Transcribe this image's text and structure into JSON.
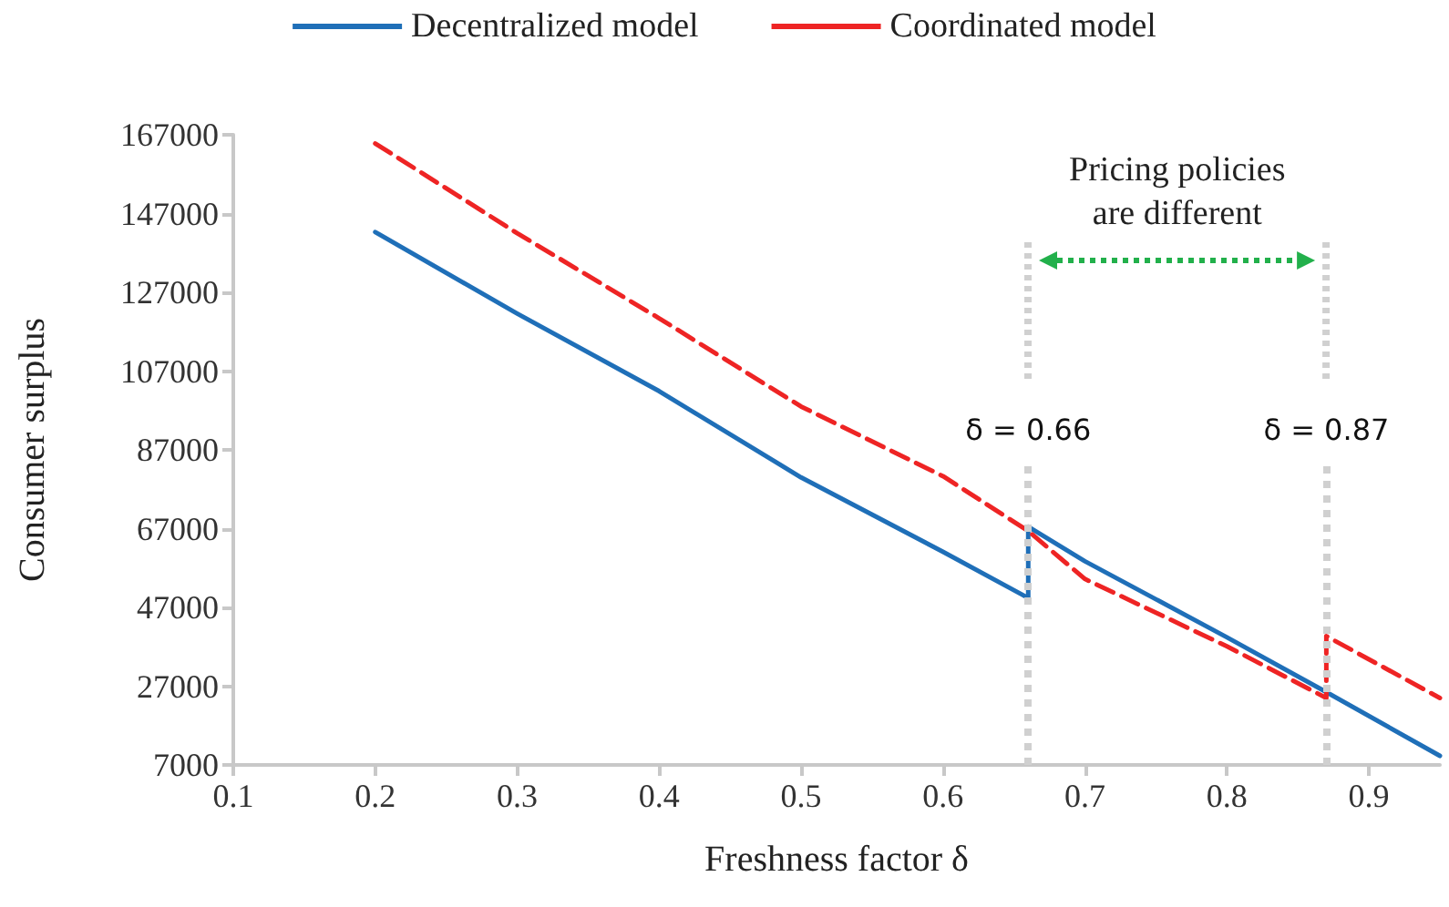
{
  "chart_data": {
    "type": "line",
    "xlabel": "Freshness factor δ",
    "ylabel": "Consumer surplus",
    "xlim": [
      0.1,
      0.95
    ],
    "xticks": [
      0.1,
      0.2,
      0.3,
      0.4,
      0.5,
      0.6,
      0.7,
      0.8,
      0.9
    ],
    "ylim": [
      7000,
      167000
    ],
    "yticks": [
      7000,
      27000,
      47000,
      67000,
      87000,
      107000,
      127000,
      147000,
      167000
    ],
    "grid": false,
    "legend": "top",
    "marker": "none",
    "series": [
      {
        "name": "Decentralized model",
        "color": "#1f6fb8",
        "line_style": "solid",
        "x": [
          0.2,
          0.3,
          0.4,
          0.5,
          0.6,
          0.66,
          0.66,
          0.7,
          0.8,
          0.87,
          0.95
        ],
        "values": [
          142300,
          121600,
          101900,
          80000,
          61100,
          49400,
          67500,
          58700,
          39400,
          25500,
          9300
        ]
      },
      {
        "name": "Coordinated model",
        "color": "#ee2424",
        "line_style": "dashed",
        "x": [
          0.2,
          0.3,
          0.4,
          0.5,
          0.6,
          0.66,
          0.7,
          0.8,
          0.87,
          0.87,
          0.95
        ],
        "values": [
          164800,
          142000,
          120400,
          98000,
          80300,
          66400,
          54200,
          37100,
          24000,
          39700,
          24000
        ]
      }
    ],
    "ref_lines": [
      {
        "axis": "x",
        "value": 0.66,
        "label": "δ = 0.66",
        "color": "#d0d0d0",
        "line_style": "dotted"
      },
      {
        "axis": "x",
        "value": 0.87,
        "label": "δ = 0.87",
        "color": "#d0d0d0",
        "line_style": "dotted"
      }
    ],
    "annotations": [
      "Pricing policies\nare different"
    ]
  }
}
